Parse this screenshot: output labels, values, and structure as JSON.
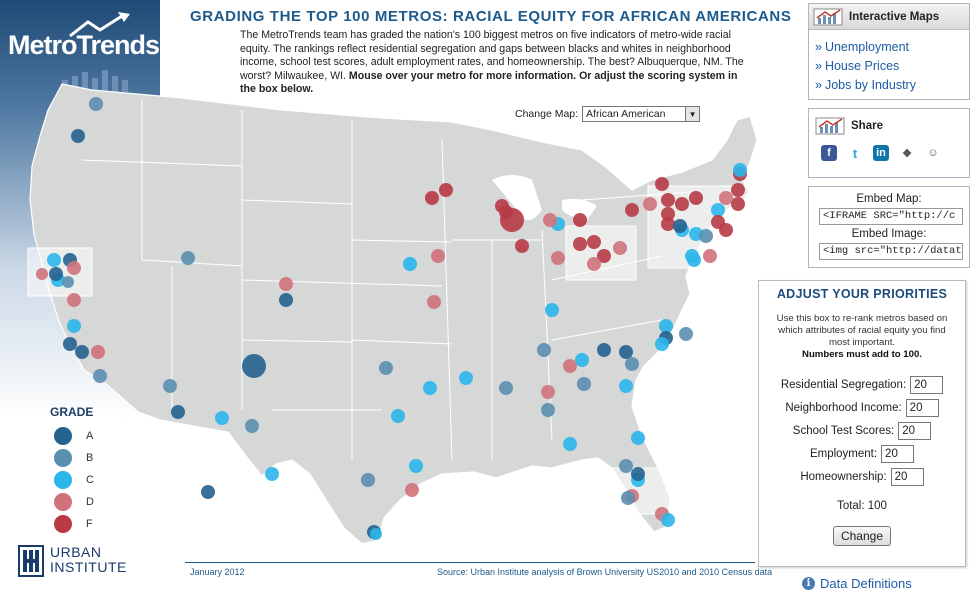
{
  "header": {
    "logo": "MetroTrends",
    "title": "GRADING THE TOP 100 METROS: RACIAL EQUITY FOR AFRICAN AMERICANS",
    "intro_text": "The MetroTrends team has graded the nation's 100 biggest metros on five indicators of metro-wide racial equity. The rankings reflect residential segregation and gaps between blacks and whites in neighborhood income, school test scores, adult employment rates, and homeownership. The best? Albuquerque, NM. The worst? Milwaukee, WI.",
    "intro_bold": "Mouse over your metro for more information. Or adjust the scoring system in the box below."
  },
  "change_map": {
    "label": "Change Map:",
    "selected": "African American"
  },
  "legend": {
    "title": "GRADE",
    "grades": [
      {
        "label": "A",
        "color": "#25628f"
      },
      {
        "label": "B",
        "color": "#5b8fb0"
      },
      {
        "label": "C",
        "color": "#2bb6ea"
      },
      {
        "label": "D",
        "color": "#d0727b"
      },
      {
        "label": "F",
        "color": "#b73a45"
      }
    ]
  },
  "interactive_maps": {
    "title": "Interactive Maps",
    "links": [
      "Unemployment",
      "House Prices",
      "Jobs by Industry"
    ]
  },
  "share": {
    "title": "Share",
    "icons": [
      "facebook-icon",
      "twitter-icon",
      "linkedin-icon",
      "digg-icon",
      "reddit-icon"
    ]
  },
  "embed": {
    "map_label": "Embed Map:",
    "map_code": "<IFRAME SRC=\"http://c",
    "image_label": "Embed Image:",
    "image_code": "<img src=\"http://datato"
  },
  "adjust": {
    "title": "ADJUST YOUR PRIORITIES",
    "description": "Use this box to re-rank metros based on which attributes of racial equity you find most important.",
    "description_bold": "Numbers must add to 100.",
    "fields": [
      {
        "label": "Residential Segregation:",
        "value": "20"
      },
      {
        "label": "Neighborhood Income:",
        "value": "20"
      },
      {
        "label": "School Test Scores:",
        "value": "20"
      },
      {
        "label": "Employment:",
        "value": "20"
      },
      {
        "label": "Homeownership:",
        "value": "20"
      }
    ],
    "total_label": "Total: 100",
    "button": "Change"
  },
  "footer": {
    "date": "January 2012",
    "source": "Source: Urban Institute analysis of Brown University US2010 and 2010 Census data",
    "data_definitions": "Data Definitions"
  },
  "urban_institute": {
    "line1": "URBAN",
    "line2": "INSTITUTE"
  },
  "map_metros": [
    {
      "g": "B"
    },
    {
      "g": "A"
    },
    {
      "g": "C"
    },
    {
      "g": "C"
    },
    {
      "g": "D"
    },
    {
      "g": "A"
    },
    {
      "g": "A"
    },
    {
      "g": "D"
    },
    {
      "g": "B"
    },
    {
      "g": "D"
    },
    {
      "g": "C"
    },
    {
      "g": "A"
    },
    {
      "g": "D"
    },
    {
      "g": "A"
    },
    {
      "g": "B"
    },
    {
      "g": "B"
    },
    {
      "g": "A"
    },
    {
      "g": "B"
    },
    {
      "g": "A"
    },
    {
      "g": "A"
    },
    {
      "g": "C"
    },
    {
      "g": "B"
    },
    {
      "g": "C"
    },
    {
      "g": "D"
    },
    {
      "g": "A"
    },
    {
      "g": "B"
    },
    {
      "g": "C"
    },
    {
      "g": "C"
    },
    {
      "g": "D"
    },
    {
      "g": "B"
    },
    {
      "g": "C"
    },
    {
      "g": "C"
    },
    {
      "g": "A"
    },
    {
      "g": "C"
    },
    {
      "g": "B"
    },
    {
      "g": "D"
    },
    {
      "g": "C"
    },
    {
      "g": "D"
    },
    {
      "g": "F"
    },
    {
      "g": "F"
    },
    {
      "g": "F"
    },
    {
      "g": "F"
    },
    {
      "g": "F"
    },
    {
      "g": "F"
    },
    {
      "g": "C"
    },
    {
      "g": "D"
    },
    {
      "g": "C"
    },
    {
      "g": "D"
    },
    {
      "g": "F"
    },
    {
      "g": "F"
    },
    {
      "g": "F"
    },
    {
      "g": "F"
    },
    {
      "g": "D"
    },
    {
      "g": "D"
    },
    {
      "g": "F"
    },
    {
      "g": "D"
    },
    {
      "g": "F"
    },
    {
      "g": "F"
    },
    {
      "g": "F"
    },
    {
      "g": "F"
    },
    {
      "g": "F"
    },
    {
      "g": "F"
    },
    {
      "g": "C"
    },
    {
      "g": "C"
    },
    {
      "g": "A"
    },
    {
      "g": "C"
    },
    {
      "g": "B"
    },
    {
      "g": "C"
    },
    {
      "g": "F"
    },
    {
      "g": "F"
    },
    {
      "g": "F"
    },
    {
      "g": "D"
    },
    {
      "g": "F"
    },
    {
      "g": "F"
    },
    {
      "g": "C"
    },
    {
      "g": "C"
    },
    {
      "g": "D"
    },
    {
      "g": "C"
    },
    {
      "g": "B"
    },
    {
      "g": "A"
    },
    {
      "g": "C"
    },
    {
      "g": "A"
    },
    {
      "g": "C"
    },
    {
      "g": "B"
    },
    {
      "g": "A"
    },
    {
      "g": "C"
    },
    {
      "g": "B"
    },
    {
      "g": "D"
    },
    {
      "g": "D"
    },
    {
      "g": "B"
    },
    {
      "g": "C"
    },
    {
      "g": "B"
    },
    {
      "g": "C"
    },
    {
      "g": "D"
    },
    {
      "g": "D"
    },
    {
      "g": "B"
    },
    {
      "g": "A"
    },
    {
      "g": "C"
    },
    {
      "g": "B"
    },
    {
      "g": "C"
    }
  ]
}
